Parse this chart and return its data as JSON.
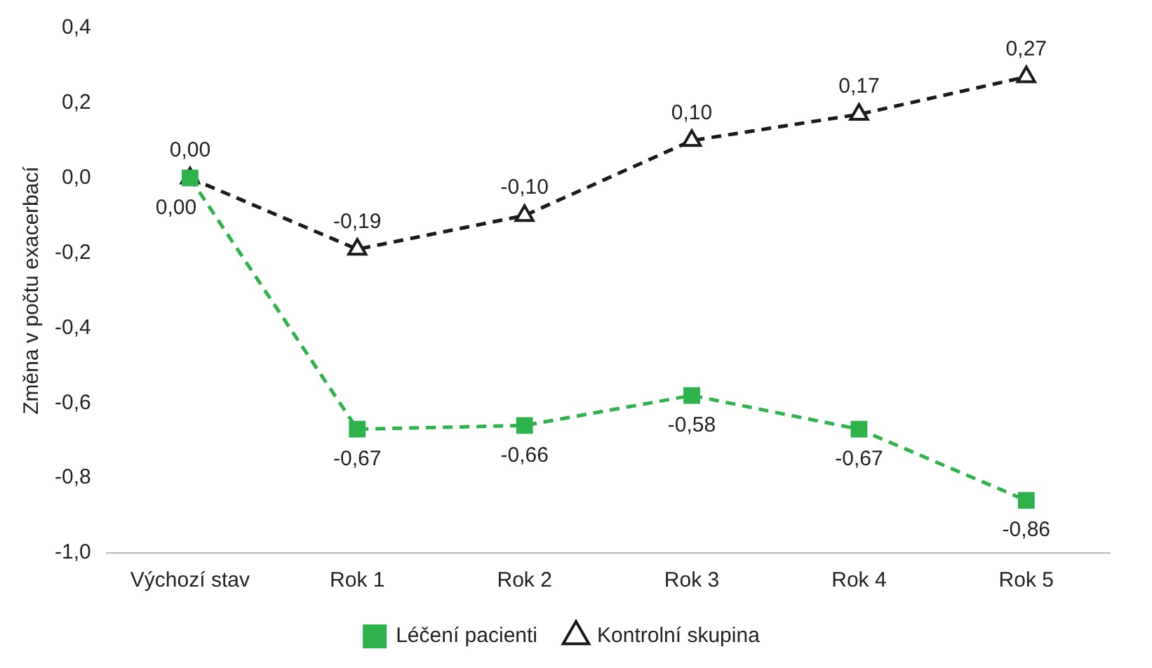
{
  "chart_data": {
    "type": "line",
    "ylabel": "Změna v počtu exacerbací",
    "categories": [
      "Výchozí stav",
      "Rok 1",
      "Rok 2",
      "Rok 3",
      "Rok 4",
      "Rok 5"
    ],
    "series": [
      {
        "name": "Léčení pacienti",
        "color": "#2eb34c",
        "marker": "square",
        "values": [
          0,
          -0.67,
          -0.66,
          -0.58,
          -0.67,
          -0.86
        ],
        "value_labels": [
          "0,00",
          "-0,67",
          "-0,66",
          "-0,58",
          "-0,67",
          "-0,86"
        ]
      },
      {
        "name": "Kontrolní skupina",
        "color": "#1a1a1a",
        "marker": "triangle",
        "values": [
          0,
          -0.19,
          -0.1,
          0.1,
          0.17,
          0.27
        ],
        "value_labels": [
          "0,00",
          "-0,19",
          "-0,10",
          "0,10",
          "0,17",
          "0,27"
        ]
      }
    ],
    "ylim": [
      -1,
      0.4
    ],
    "yticks": [
      {
        "value": -1,
        "label": "-1,0"
      },
      {
        "value": -0.8,
        "label": "-0,8"
      },
      {
        "value": -0.6,
        "label": "-0,6"
      },
      {
        "value": -0.4,
        "label": "-0,4"
      },
      {
        "value": -0.2,
        "label": "-0,2"
      },
      {
        "value": 0,
        "label": "0,0"
      },
      {
        "value": 0.2,
        "label": "0,2"
      },
      {
        "value": 0.4,
        "label": "0,4"
      }
    ],
    "line_style": "dashed",
    "legend": "bottom",
    "grid": false
  }
}
